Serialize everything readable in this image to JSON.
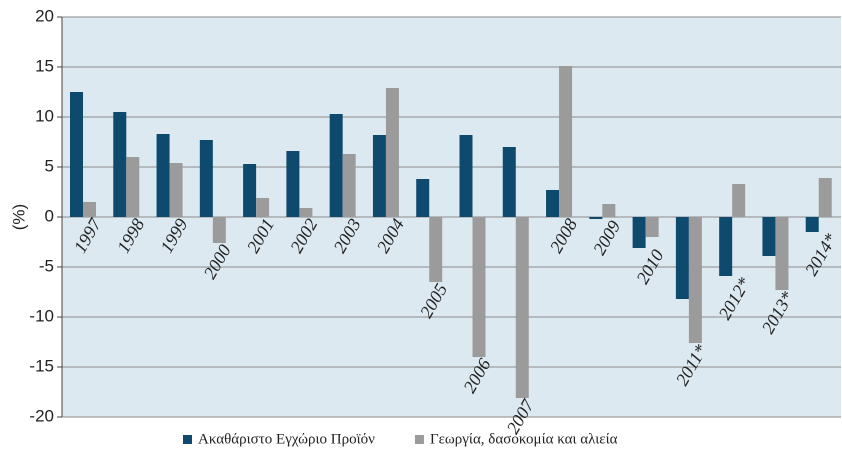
{
  "chart_data": {
    "type": "bar",
    "y_label": "(%)",
    "categories": [
      "1997",
      "1998",
      "1999",
      "2000",
      "2001",
      "2002",
      "2003",
      "2004",
      "2005",
      "2006",
      "2007",
      "2008",
      "2009",
      "2010",
      "2011*",
      "2012*",
      "2013*",
      "2014*"
    ],
    "series": [
      {
        "name": "Ακαθάριστο Εγχώριο Προϊόν",
        "color": "#0d4a6e",
        "values": [
          12.5,
          10.5,
          8.3,
          7.7,
          5.3,
          6.6,
          10.3,
          8.2,
          3.8,
          8.2,
          7.0,
          2.7,
          -0.2,
          -3.1,
          -8.2,
          -5.9,
          -3.9,
          -1.5
        ]
      },
      {
        "name": "Γεωργία, δασοκομία και αλιεία",
        "color": "#9b9b9b",
        "values": [
          1.5,
          6.0,
          5.4,
          -2.6,
          1.9,
          0.9,
          6.3,
          12.9,
          -6.5,
          -14.0,
          -18.1,
          15.1,
          1.3,
          -2.0,
          -12.6,
          3.3,
          -7.3,
          3.9
        ]
      }
    ],
    "ylim": [
      -20,
      20
    ],
    "yticks": [
      -20,
      -15,
      -10,
      -5,
      0,
      5,
      10,
      15,
      20
    ],
    "grid": true,
    "plot_background": "#dde9f0",
    "legend": "bottom"
  }
}
